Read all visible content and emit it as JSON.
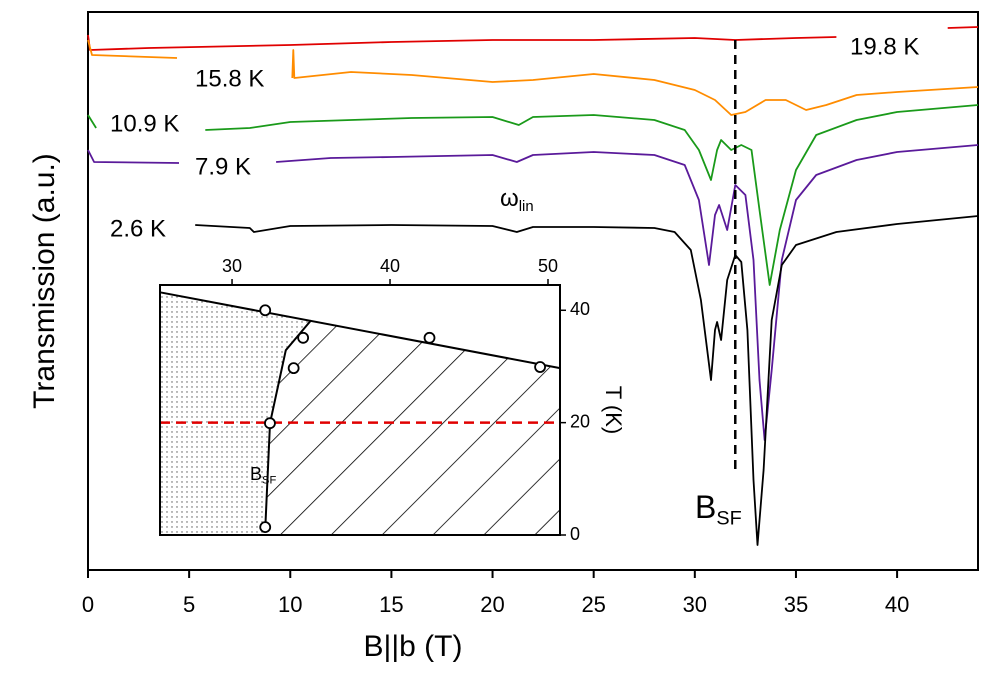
{
  "chart_data": [
    {
      "type": "line",
      "xlabel": "B||b (T)",
      "ylabel": "Transmission (a.u.)",
      "xlim": [
        0,
        44
      ],
      "ylim": [
        0,
        558
      ],
      "xticks": [
        0,
        5,
        10,
        15,
        20,
        25,
        30,
        35,
        40
      ],
      "vline": 32,
      "annotations": [
        {
          "text": "ω",
          "sub": "lin"
        },
        {
          "text": "B",
          "sub": "SF"
        }
      ],
      "series": [
        {
          "name": "19.8 K",
          "color": "#e00000",
          "x": [
            0,
            0.1,
            3,
            10,
            15,
            20,
            25,
            30,
            32,
            35,
            37,
            40,
            42.5,
            44
          ],
          "values": [
            535,
            520,
            522,
            525,
            528,
            530,
            530,
            532,
            530,
            532,
            533,
            null,
            542,
            543
          ]
        },
        {
          "name": "15.8 K",
          "color": "#ff8c00",
          "x": [
            0,
            0.2,
            4.4,
            7,
            10.1,
            10.15,
            10.2,
            13,
            16,
            20,
            22,
            25,
            28,
            30,
            31,
            31.8,
            32.5,
            33.5,
            34.5,
            35.5,
            36.5,
            38,
            40,
            44
          ],
          "values": [
            530,
            515,
            512,
            null,
            492,
            520,
            492,
            498,
            495,
            488,
            490,
            496,
            490,
            480,
            470,
            455,
            458,
            470,
            470,
            460,
            465,
            475,
            478,
            483
          ]
        },
        {
          "name": "10.9 K",
          "color": "#1a9a1a",
          "x": [
            0,
            0.4,
            3,
            5.8,
            8,
            10,
            13,
            16,
            20,
            21.3,
            22,
            25,
            28,
            29.5,
            30.2,
            30.8,
            31.1,
            31.3,
            31.8,
            32.3,
            32.8,
            33.2,
            33.7,
            34.2,
            35,
            36,
            38,
            40,
            44
          ],
          "values": [
            455,
            442,
            null,
            440,
            442,
            448,
            450,
            452,
            453,
            445,
            453,
            455,
            450,
            440,
            420,
            390,
            420,
            430,
            420,
            425,
            420,
            360,
            285,
            340,
            400,
            435,
            450,
            458,
            465
          ]
        },
        {
          "name": "7.9 K",
          "color": "#5a1a9a",
          "x": [
            0,
            0.3,
            4.5,
            7,
            9.3,
            12,
            15,
            20,
            21.2,
            22,
            25,
            28,
            29.5,
            30.2,
            30.7,
            31.0,
            31.2,
            31.6,
            32.0,
            32.5,
            32.9,
            33.2,
            33.45,
            33.8,
            34.3,
            35,
            36,
            38,
            40,
            44
          ],
          "values": [
            420,
            408,
            407,
            null,
            408,
            412,
            413,
            415,
            408,
            415,
            418,
            415,
            405,
            370,
            305,
            355,
            365,
            340,
            385,
            375,
            310,
            190,
            130,
            200,
            310,
            370,
            395,
            410,
            418,
            425
          ]
        },
        {
          "name": "2.6 K",
          "color": "#000000",
          "x": [
            5.3,
            8,
            8.2,
            10,
            15,
            20,
            21.2,
            22,
            25,
            28,
            29,
            29.8,
            30.3,
            30.8,
            31.0,
            31.1,
            31.3,
            31.6,
            32.0,
            32.3,
            32.6,
            32.9,
            33.1,
            33.4,
            33.8,
            34.3,
            35,
            37,
            40,
            44
          ],
          "values": [
            345,
            342,
            338,
            344,
            345,
            344,
            338,
            343,
            343,
            342,
            338,
            320,
            270,
            190,
            240,
            248,
            230,
            290,
            315,
            308,
            240,
            90,
            25,
            100,
            250,
            305,
            325,
            338,
            346,
            354
          ]
        }
      ]
    },
    {
      "type": "scatter",
      "ylabel": "T (K)",
      "xlim": [
        25.44,
        50.76
      ],
      "ylim": [
        0,
        44.5
      ],
      "xticks": [
        30,
        40,
        50
      ],
      "yticks": [
        0,
        20,
        40
      ],
      "hline": 20,
      "annotations": [
        {
          "text": "B",
          "sub": "SF"
        }
      ],
      "x": [
        32.1,
        34.5,
        33.9,
        32.4,
        32.1,
        42.5,
        49.5
      ],
      "values": [
        40.0,
        35.1,
        29.7,
        19.9,
        1.4,
        35.1,
        29.9
      ],
      "curves": [
        {
          "x": [
            25.44,
            50.76
          ],
          "values": [
            43.2,
            29.7
          ]
        },
        {
          "x": [
            32.1,
            32.4,
            33.4,
            35.0
          ],
          "values": [
            0.9,
            19.9,
            32.9,
            38.2
          ]
        }
      ]
    }
  ]
}
